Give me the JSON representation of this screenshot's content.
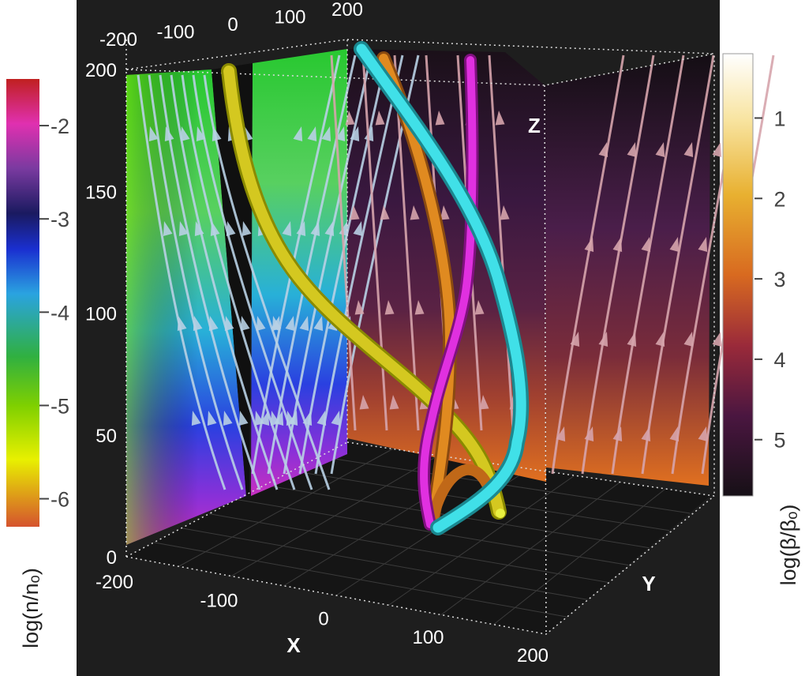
{
  "chart_data": {
    "type": "3d-field-plot",
    "title": "",
    "axes": {
      "x": {
        "label": "X",
        "range": [
          -200,
          200
        ],
        "ticks": [
          "-200",
          "-100",
          "0",
          "100",
          "200"
        ]
      },
      "top_x": {
        "ticks": [
          "-200",
          "-100",
          "0",
          "100",
          "200"
        ]
      },
      "y": {
        "label": "Y",
        "range": [
          -200,
          200
        ]
      },
      "z": {
        "label": "Z",
        "range": [
          0,
          200
        ],
        "ticks": [
          "0",
          "50",
          "100",
          "150",
          "200"
        ]
      }
    },
    "colorbar_density": {
      "label": "log(n/nₒ)",
      "ticks": [
        "-2",
        "-3",
        "-4",
        "-5",
        "-6"
      ],
      "tick_values": [
        -2,
        -3,
        -4,
        -5,
        -6
      ],
      "range": [
        -1.5,
        -6.3
      ],
      "colormap": [
        "#d5532e",
        "#e8f000",
        "#7fd000",
        "#30b040",
        "#2aa3e0",
        "#1a2fd0",
        "#1a1a60",
        "#7a3aa0",
        "#e030b0",
        "#c02020"
      ]
    },
    "colorbar_beta": {
      "label": "log(β/βₒ)",
      "ticks": [
        "1",
        "2",
        "3",
        "4",
        "5"
      ],
      "tick_values": [
        1,
        2,
        3,
        4,
        5
      ],
      "range": [
        0.2,
        5.7
      ],
      "colormap": [
        "#ffffff",
        "#f8e4a0",
        "#e8b030",
        "#d86a20",
        "#9a2a3a",
        "#4a1640",
        "#161016"
      ]
    },
    "field_lines": [
      {
        "color": "#d4c820",
        "shade": "#8a8a00"
      },
      {
        "color": "#e08a20",
        "shade": "#8a4a10"
      },
      {
        "color": "#e030e0",
        "shade": "#801080"
      },
      {
        "color": "#40e0e8",
        "shade": "#1a8890"
      }
    ],
    "colors": {
      "background": "#1e1e1e",
      "arrow_left": "#b8d0e4",
      "arrow_right": "#d6a4ac"
    }
  }
}
